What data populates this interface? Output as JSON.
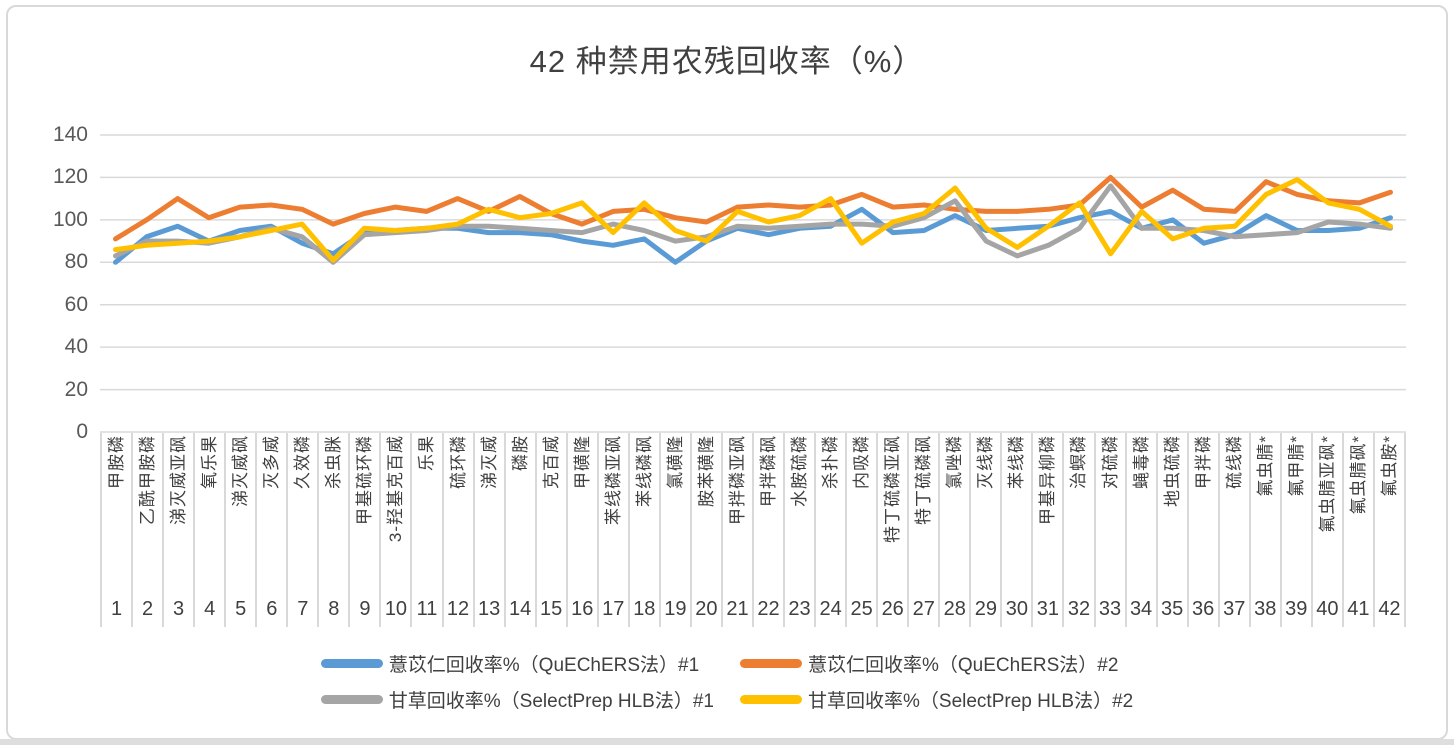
{
  "chart_data": {
    "type": "line",
    "title": "42 种禁用农残回收率（%）",
    "xlabel": "",
    "ylabel": "",
    "ylim": [
      0,
      140
    ],
    "yticks": [
      0,
      20,
      40,
      60,
      80,
      100,
      120,
      140
    ],
    "grid": true,
    "legend_position": "bottom",
    "colors": {
      "grid": "#D9D9D9",
      "axis_text": "#595959",
      "label_text": "#404040",
      "border": "#D9D9D9",
      "background": "#FFFFFF"
    },
    "categories": [
      "甲胺磷",
      "乙酰甲胺磷",
      "涕灭威亚砜",
      "氧乐果",
      "涕灭威砜",
      "灭多威",
      "久效磷",
      "杀虫脒",
      "甲基硫环磷",
      "3-羟基克百威",
      "乐果",
      "硫环磷",
      "涕灭威",
      "磷胺",
      "克百威",
      "甲磺隆",
      "苯线磷亚砜",
      "苯线磷砜",
      "氯磺隆",
      "胺苯磺隆",
      "甲拌磷亚砜",
      "甲拌磷砜",
      "水胺硫磷",
      "杀扑磷",
      "内吸磷",
      "特丁硫磷亚砜",
      "特丁硫磷砜",
      "氯唑磷",
      "灭线磷",
      "苯线磷",
      "甲基异柳磷",
      "治螟磷",
      "对硫磷",
      "蝇毒磷",
      "地虫硫磷",
      "甲拌磷",
      "硫线磷",
      "氟虫腈*",
      "氟甲腈*",
      "氟虫腈亚砜*",
      "氟虫腈砜*",
      "氟虫胺*"
    ],
    "category_numbers": [
      "1",
      "2",
      "3",
      "4",
      "5",
      "6",
      "7",
      "8",
      "9",
      "10",
      "11",
      "12",
      "13",
      "14",
      "15",
      "16",
      "17",
      "18",
      "19",
      "20",
      "21",
      "22",
      "23",
      "24",
      "25",
      "26",
      "27",
      "28",
      "29",
      "30",
      "31",
      "32",
      "33",
      "34",
      "35",
      "36",
      "37",
      "38",
      "39",
      "40",
      "41",
      "42"
    ],
    "series": [
      {
        "name": "薏苡仁回收率%（QuEChERS法）#1",
        "color": "#5B9BD5",
        "values": [
          80,
          92,
          97,
          90,
          95,
          97,
          89,
          84,
          94,
          95,
          96,
          96,
          94,
          94,
          93,
          90,
          88,
          91,
          80,
          90,
          96,
          93,
          96,
          97,
          105,
          94,
          95,
          102,
          95,
          96,
          97,
          101,
          104,
          96,
          100,
          89,
          93,
          102,
          95,
          95,
          96,
          101
        ]
      },
      {
        "name": "薏苡仁回收率%（QuEChERS法）#2",
        "color": "#ED7D31",
        "values": [
          91,
          100,
          110,
          101,
          106,
          107,
          105,
          98,
          103,
          106,
          104,
          110,
          104,
          111,
          103,
          98,
          104,
          105,
          101,
          99,
          106,
          107,
          106,
          107,
          112,
          106,
          107,
          105,
          104,
          104,
          105,
          107,
          120,
          106,
          114,
          105,
          104,
          118,
          112,
          109,
          108,
          113
        ]
      },
      {
        "name": "甘草回收率%（SelectPrep HLB法）#1",
        "color": "#A5A5A5",
        "values": [
          83,
          90,
          90,
          89,
          92,
          96,
          92,
          80,
          93,
          94,
          95,
          97,
          97,
          96,
          95,
          94,
          98,
          95,
          90,
          92,
          97,
          96,
          97,
          98,
          98,
          97,
          101,
          109,
          90,
          83,
          88,
          96,
          116,
          96,
          96,
          95,
          92,
          93,
          94,
          99,
          98,
          96
        ]
      },
      {
        "name": "甘草回收率%（SelectPrep HLB法）#2",
        "color": "#FFC000",
        "values": [
          86,
          88,
          89,
          90,
          92,
          95,
          98,
          81,
          96,
          95,
          96,
          98,
          105,
          101,
          103,
          108,
          94,
          108,
          95,
          90,
          104,
          99,
          102,
          110,
          89,
          99,
          103,
          115,
          96,
          87,
          97,
          108,
          84,
          104,
          91,
          96,
          97,
          112,
          119,
          108,
          105,
          97
        ]
      }
    ]
  }
}
